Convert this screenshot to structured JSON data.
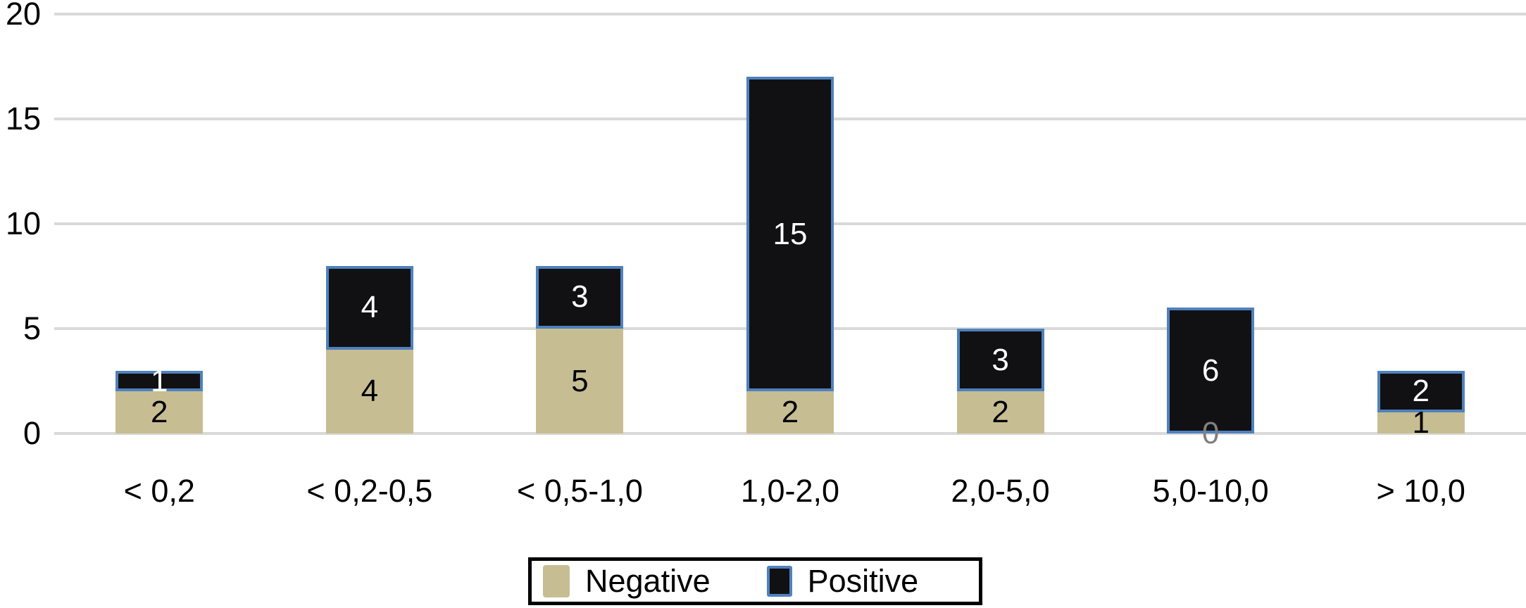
{
  "chart_data": {
    "type": "bar",
    "stacked": true,
    "orientation": "vertical",
    "categories": [
      "< 0,2",
      "< 0,2-0,5",
      "< 0,5-1,0",
      "1,0-2,0",
      "2,0-5,0",
      "5,0-10,0",
      "> 10,0"
    ],
    "series": [
      {
        "name": "Negative",
        "values": [
          2,
          4,
          5,
          2,
          2,
          0,
          1
        ],
        "color": "#C7BD93",
        "label_color": "#000000"
      },
      {
        "name": "Positive",
        "values": [
          1,
          4,
          3,
          15,
          3,
          6,
          2
        ],
        "color": "#111113",
        "border_color": "#4F81BD",
        "label_color": "#FFFFFF"
      }
    ],
    "totals": [
      3,
      8,
      8,
      17,
      5,
      6,
      3
    ],
    "zero_label_color": "#808080",
    "ylim": [
      0,
      20
    ],
    "yticks": [
      0,
      5,
      10,
      15,
      20
    ],
    "grid": "horizontal",
    "gridline_color": "#D9D9D9",
    "background_color": "#FFFFFF",
    "legend_position": "bottom",
    "legend_border_color": "#000000"
  }
}
